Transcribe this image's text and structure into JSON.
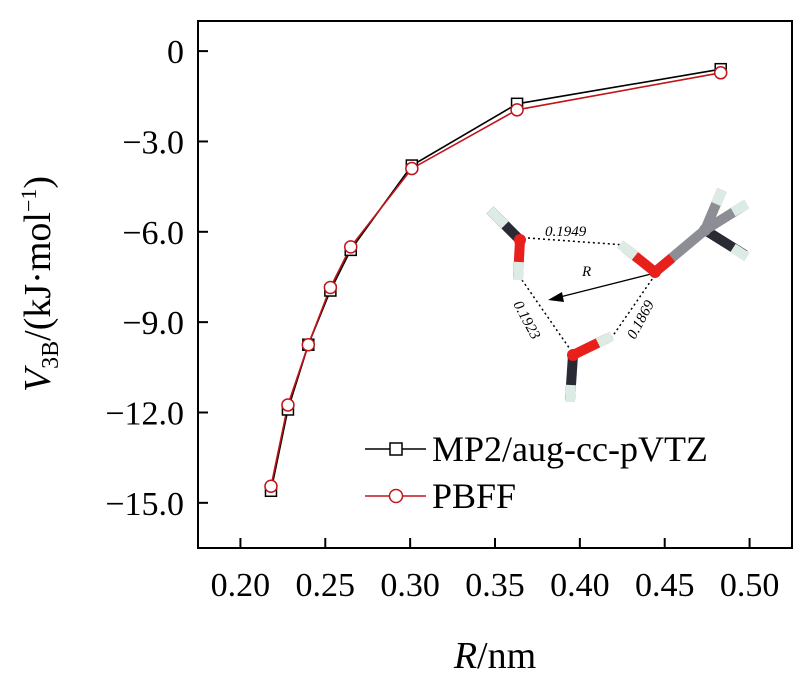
{
  "chart_data": {
    "type": "line",
    "xlabel_var": "R",
    "xlabel_unit": "/nm",
    "ylabel_var": "V",
    "ylabel_sub": "3B",
    "ylabel_unit": "/(kJ·mol",
    "ylabel_sup": "−1",
    "ylabel_close": ")",
    "xlim": [
      0.175,
      0.525
    ],
    "ylim": [
      -16.5,
      1.0
    ],
    "xticks": [
      0.2,
      0.25,
      0.3,
      0.35,
      0.4,
      0.45,
      0.5
    ],
    "xtick_labels": [
      "0.20",
      "0.25",
      "0.30",
      "0.35",
      "0.40",
      "0.45",
      "0.50"
    ],
    "yticks": [
      0,
      -3,
      -6,
      -9,
      -12,
      -15
    ],
    "ytick_labels": [
      "0",
      "−3.0",
      "−6.0",
      "−9.0",
      "−12.0",
      "−15.0"
    ],
    "legend_position": "bottom-right",
    "series": [
      {
        "name": "MP2/aug-cc-pVTZ",
        "color": "#000000",
        "marker": "square",
        "x": [
          0.218,
          0.228,
          0.24,
          0.253,
          0.265,
          0.301,
          0.363,
          0.483
        ],
        "y": [
          -14.6,
          -11.9,
          -9.75,
          -7.95,
          -6.6,
          -3.8,
          -1.75,
          -0.6
        ]
      },
      {
        "name": "PBFF",
        "color": "#c0151b",
        "marker": "circle",
        "x": [
          0.218,
          0.228,
          0.24,
          0.253,
          0.265,
          0.301,
          0.363,
          0.483
        ],
        "y": [
          -14.45,
          -11.75,
          -9.75,
          -7.85,
          -6.5,
          -3.9,
          -1.95,
          -0.72
        ]
      }
    ]
  },
  "inset": {
    "label_top": "0.1949",
    "label_left": "0.1923",
    "label_right": "0.1869",
    "label_r": "R",
    "colors": {
      "oxygen": "#e8201c",
      "carbon": "#8d8d96",
      "hydrogen": "#dcebe3",
      "dark": "#2a2a35"
    }
  }
}
